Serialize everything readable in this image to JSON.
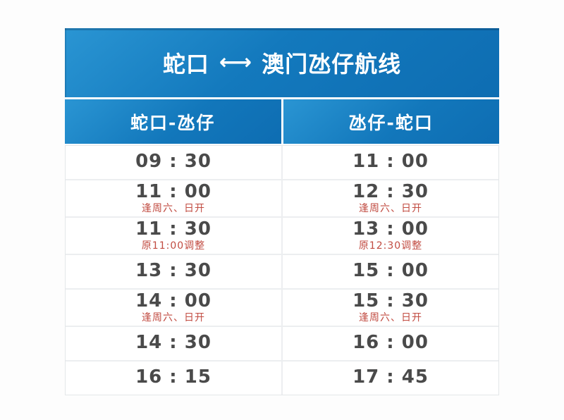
{
  "colors": {
    "header_blue_start": "#2a95d3",
    "header_blue_end": "#0e6db2",
    "time_text": "#4a4a4a",
    "note_red": "#c14b41",
    "divider_gray": "#eceef0",
    "page_background": "#fdfdfd"
  },
  "title": {
    "left": "蛇口",
    "arrow": "←→",
    "right": "澳门氹仔航线"
  },
  "columns": [
    {
      "label": "蛇口-氹仔"
    },
    {
      "label": "氹仔-蛇口"
    }
  ],
  "rows": [
    {
      "left": {
        "time": "09 : 30",
        "note": ""
      },
      "right": {
        "time": "11 : 00",
        "note": ""
      }
    },
    {
      "left": {
        "time": "11 : 00",
        "note": "逢周六、日开"
      },
      "right": {
        "time": "12 : 30",
        "note": "逢周六、日开"
      }
    },
    {
      "left": {
        "time": "11 : 30",
        "note": "原11:00调整"
      },
      "right": {
        "time": "13 : 00",
        "note": "原12:30调整"
      }
    },
    {
      "left": {
        "time": "13 : 30",
        "note": ""
      },
      "right": {
        "time": "15 : 00",
        "note": ""
      }
    },
    {
      "left": {
        "time": "14 : 00",
        "note": "逢周六、日开"
      },
      "right": {
        "time": "15 : 30",
        "note": "逢周六、日开"
      }
    },
    {
      "left": {
        "time": "14 : 30",
        "note": ""
      },
      "right": {
        "time": "16 : 00",
        "note": ""
      }
    },
    {
      "left": {
        "time": "16 : 15",
        "note": ""
      },
      "right": {
        "time": "17 : 45",
        "note": ""
      }
    }
  ]
}
